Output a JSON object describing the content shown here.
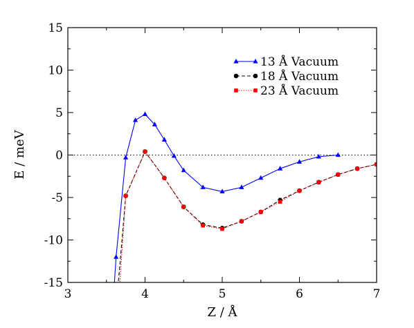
{
  "chart_data": {
    "type": "line",
    "xlabel": "Z / Å",
    "ylabel": "E / meV",
    "xlim": [
      3,
      7
    ],
    "ylim": [
      -15,
      15
    ],
    "xticks": [
      3,
      4,
      5,
      6,
      7
    ],
    "yticks": [
      -15,
      -10,
      -5,
      0,
      5,
      10,
      15
    ],
    "legend_position": "top-right",
    "reference_line": {
      "y": 0,
      "style": "dotted"
    },
    "series": [
      {
        "name": "13 Å Vacuum",
        "color": "#0000ff",
        "marker": "triangle",
        "line_style": "solid",
        "x": [
          3.625,
          3.75,
          3.875,
          4.0,
          4.125,
          4.25,
          4.375,
          4.5,
          4.75,
          5.0,
          5.25,
          5.5,
          5.75,
          6.0,
          6.25,
          6.5
        ],
        "y": [
          -12.0,
          -0.3,
          4.1,
          4.8,
          3.6,
          1.8,
          -0.1,
          -1.8,
          -3.8,
          -4.3,
          -3.8,
          -2.7,
          -1.6,
          -0.8,
          -0.2,
          0.0
        ],
        "offscale_start": {
          "x": 3.6,
          "y": -15
        }
      },
      {
        "name": "18 Å Vacuum",
        "color": "#000000",
        "marker": "circle",
        "line_style": "dashed",
        "x": [
          3.75,
          4.0,
          4.25,
          4.5,
          4.75,
          5.0,
          5.25,
          5.5,
          5.75,
          6.0,
          6.25,
          6.5,
          6.75,
          7.0
        ],
        "y": [
          -4.8,
          0.4,
          -2.7,
          -6.1,
          -8.2,
          -8.6,
          -7.8,
          -6.7,
          -5.3,
          -4.2,
          -3.2,
          -2.3,
          -1.6,
          -1.1
        ],
        "offscale_start": {
          "x": 3.65,
          "y": -15
        }
      },
      {
        "name": "23 Å Vacuum",
        "color": "#ff0000",
        "marker": "square",
        "line_style": "dotted",
        "x": [
          3.75,
          4.0,
          4.25,
          4.5,
          4.75,
          5.0,
          5.25,
          5.5,
          5.75,
          6.0,
          6.25,
          6.5,
          6.75,
          7.0
        ],
        "y": [
          -4.8,
          0.4,
          -2.7,
          -6.1,
          -8.3,
          -8.7,
          -7.8,
          -6.7,
          -5.5,
          -4.2,
          -3.2,
          -2.3,
          -1.6,
          -1.1
        ],
        "offscale_start": {
          "x": 3.67,
          "y": -15
        }
      }
    ]
  }
}
